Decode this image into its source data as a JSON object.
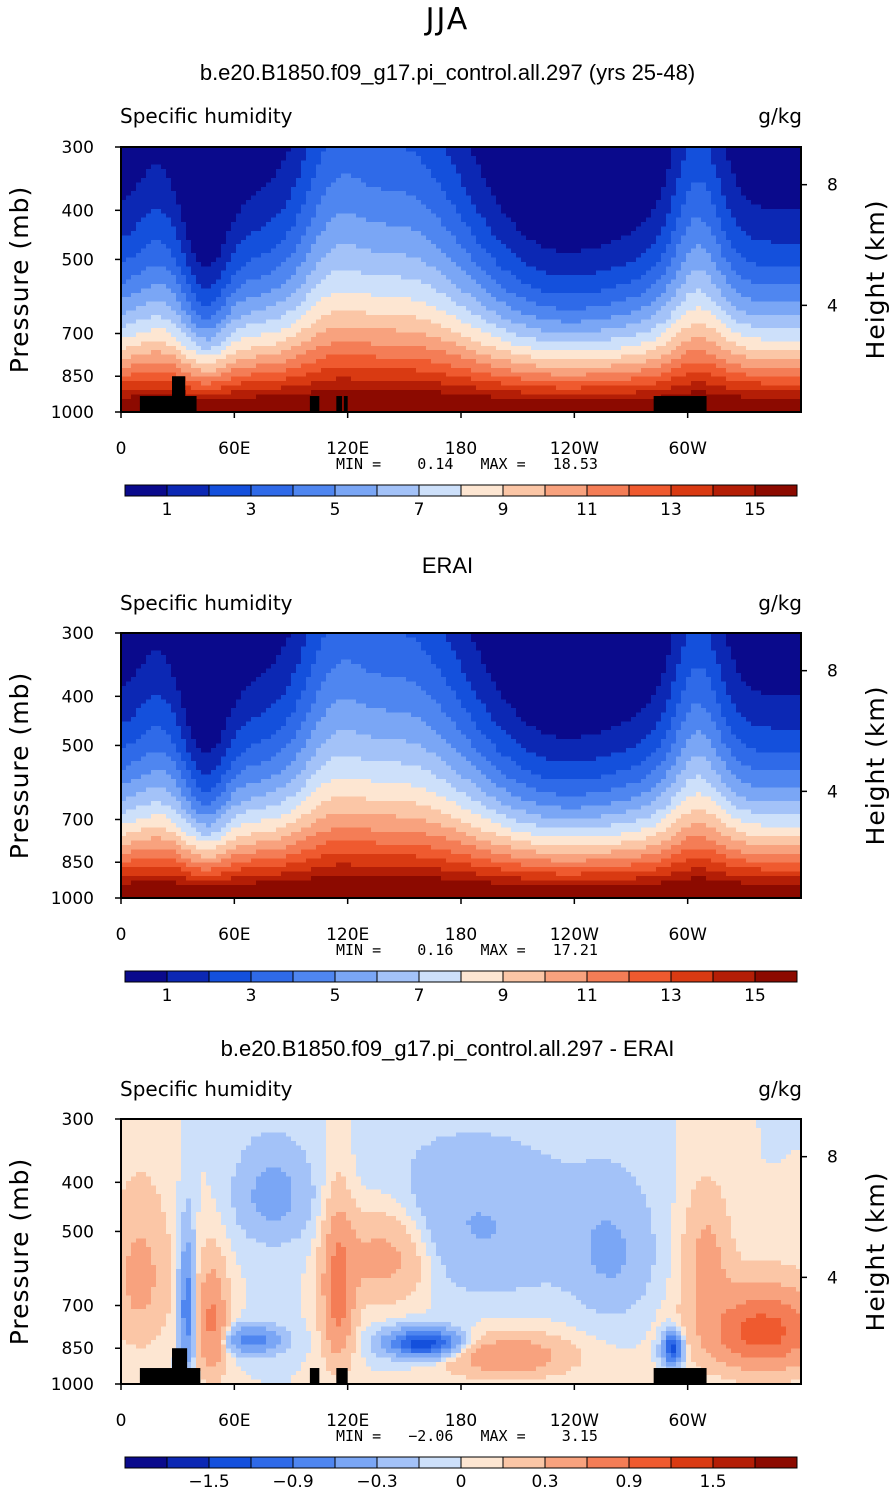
{
  "page": {
    "season": "JJA"
  },
  "panels": [
    {
      "title": "b.e20.B1850.f09_g17.pi_control.all.297 (yrs 25-48)",
      "variable": "Specific humidity",
      "units": "g/kg",
      "y_left_label": "Pressure (mb)",
      "y_right_label": "Height (km)",
      "min_text": "MIN =",
      "min_value": "0.14",
      "max_text": "MAX =",
      "max_value": "18.53"
    },
    {
      "title": "ERAI",
      "variable": "Specific humidity",
      "units": "g/kg",
      "y_left_label": "Pressure (mb)",
      "y_right_label": "Height (km)",
      "min_text": "MIN =",
      "min_value": "0.16",
      "max_text": "MAX =",
      "max_value": "17.21"
    },
    {
      "title": "b.e20.B1850.f09_g17.pi_control.all.297 - ERAI",
      "variable": "Specific humidity",
      "units": "g/kg",
      "y_left_label": "Pressure (mb)",
      "y_right_label": "Height (km)",
      "min_text": "MIN =",
      "min_value": "−2.06",
      "max_text": "MAX =",
      "max_value": "3.15"
    }
  ],
  "chart_data": [
    {
      "type": "heatmap",
      "title": "b.e20.B1850.f09_g17.pi_control.all.297 (yrs 25-48)",
      "variable": "Specific humidity",
      "units": "g/kg",
      "x_ticks": [
        "0",
        "60E",
        "120E",
        "180",
        "120W",
        "60W"
      ],
      "x_tick_lon": [
        0,
        60,
        120,
        180,
        240,
        300
      ],
      "xlim": [
        0,
        360
      ],
      "y_ticks": [
        "300",
        "400",
        "500",
        "700",
        "850",
        "1000"
      ],
      "y_tick_values": [
        300,
        400,
        500,
        700,
        850,
        1000
      ],
      "ylim": [
        300,
        1000
      ],
      "y2_ticks": [
        "8",
        "4"
      ],
      "y2_tick_pressure": [
        356,
        616
      ],
      "levels": [
        1,
        2,
        3,
        4,
        5,
        6,
        7,
        8,
        9,
        10,
        11,
        12,
        13,
        14,
        15
      ],
      "colorbar_labels": [
        "1",
        "3",
        "5",
        "7",
        "9",
        "11",
        "13",
        "15"
      ],
      "colors": [
        "#0a0a8c",
        "#0c28b4",
        "#1450dc",
        "#2f6ae8",
        "#4f86f0",
        "#7aa6f5",
        "#a3c2f8",
        "#cde0fa",
        "#fde6d2",
        "#fbc6a6",
        "#f8a27e",
        "#f47d56",
        "#ef5a2f",
        "#d93a12",
        "#b41e06",
        "#8c0a00"
      ],
      "field_model": "moisture",
      "min": 0.14,
      "max": 18.53,
      "terrain": [
        [
          10,
          40,
          930
        ],
        [
          27,
          34,
          850
        ],
        [
          100,
          105,
          930
        ],
        [
          114,
          117,
          930
        ],
        [
          118,
          120,
          930
        ],
        [
          282,
          310,
          930
        ]
      ]
    },
    {
      "type": "heatmap",
      "title": "ERAI",
      "variable": "Specific humidity",
      "units": "g/kg",
      "x_ticks": [
        "0",
        "60E",
        "120E",
        "180",
        "120W",
        "60W"
      ],
      "x_tick_lon": [
        0,
        60,
        120,
        180,
        240,
        300
      ],
      "xlim": [
        0,
        360
      ],
      "y_ticks": [
        "300",
        "400",
        "500",
        "700",
        "850",
        "1000"
      ],
      "y_tick_values": [
        300,
        400,
        500,
        700,
        850,
        1000
      ],
      "ylim": [
        300,
        1000
      ],
      "y2_ticks": [
        "8",
        "4"
      ],
      "y2_tick_pressure": [
        356,
        616
      ],
      "levels": [
        1,
        2,
        3,
        4,
        5,
        6,
        7,
        8,
        9,
        10,
        11,
        12,
        13,
        14,
        15
      ],
      "colorbar_labels": [
        "1",
        "3",
        "5",
        "7",
        "9",
        "11",
        "13",
        "15"
      ],
      "colors": [
        "#0a0a8c",
        "#0c28b4",
        "#1450dc",
        "#2f6ae8",
        "#4f86f0",
        "#7aa6f5",
        "#a3c2f8",
        "#cde0fa",
        "#fde6d2",
        "#fbc6a6",
        "#f8a27e",
        "#f47d56",
        "#ef5a2f",
        "#d93a12",
        "#b41e06",
        "#8c0a00"
      ],
      "field_model": "moisture",
      "min": 0.16,
      "max": 17.21,
      "terrain": []
    },
    {
      "type": "heatmap",
      "title": "b.e20.B1850.f09_g17.pi_control.all.297 - ERAI",
      "variable": "Specific humidity",
      "units": "g/kg",
      "x_ticks": [
        "0",
        "60E",
        "120E",
        "180",
        "120W",
        "60W"
      ],
      "x_tick_lon": [
        0,
        60,
        120,
        180,
        240,
        300
      ],
      "xlim": [
        0,
        360
      ],
      "y_ticks": [
        "300",
        "400",
        "500",
        "700",
        "850",
        "1000"
      ],
      "y_tick_values": [
        300,
        400,
        500,
        700,
        850,
        1000
      ],
      "ylim": [
        300,
        1000
      ],
      "y2_ticks": [
        "8",
        "4"
      ],
      "y2_tick_pressure": [
        356,
        616
      ],
      "levels": [
        -1.8,
        -1.5,
        -1.2,
        -0.9,
        -0.6,
        -0.3,
        -0.1,
        0,
        0.1,
        0.3,
        0.6,
        0.9,
        1.2,
        1.5,
        1.8
      ],
      "colorbar_labels": [
        "−1.5",
        "−0.9",
        "−0.3",
        "0",
        "0.3",
        "0.9",
        "1.5"
      ],
      "colorbar_label_levels": [
        -1.5,
        -0.9,
        -0.3,
        0,
        0.3,
        0.9,
        1.5
      ],
      "colors": [
        "#0a0a8c",
        "#0c28b4",
        "#1450dc",
        "#2f6ae8",
        "#4f86f0",
        "#7aa6f5",
        "#a3c2f8",
        "#cde0fa",
        "#fde6d2",
        "#fbc6a6",
        "#f8a27e",
        "#f47d56",
        "#ef5a2f",
        "#d93a12",
        "#b41e06",
        "#8c0a00"
      ],
      "field_model": "difference",
      "min": -2.06,
      "max": 3.15,
      "terrain": [
        [
          10,
          42,
          930
        ],
        [
          27,
          35,
          850
        ],
        [
          100,
          105,
          930
        ],
        [
          114,
          120,
          930
        ],
        [
          282,
          310,
          930
        ]
      ]
    }
  ]
}
